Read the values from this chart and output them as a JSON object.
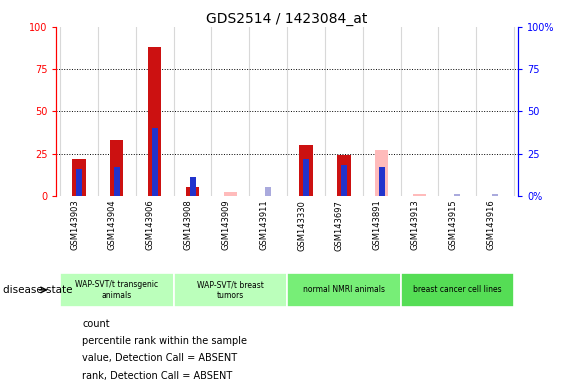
{
  "title": "GDS2514 / 1423084_at",
  "samples": [
    "GSM143903",
    "GSM143904",
    "GSM143906",
    "GSM143908",
    "GSM143909",
    "GSM143911",
    "GSM143330",
    "GSM143697",
    "GSM143891",
    "GSM143913",
    "GSM143915",
    "GSM143916"
  ],
  "count": [
    22,
    33,
    88,
    5,
    0,
    0,
    30,
    24,
    0,
    0,
    0,
    0
  ],
  "percentile_rank": [
    16,
    17,
    40,
    11,
    0,
    0,
    22,
    18,
    17,
    0,
    0,
    0
  ],
  "value_absent": [
    0,
    0,
    0,
    0,
    2,
    0,
    0,
    0,
    27,
    1,
    0,
    0
  ],
  "rank_absent": [
    0,
    0,
    0,
    0,
    0,
    5,
    0,
    0,
    0,
    0,
    1,
    1
  ],
  "ylim": [
    0,
    100
  ],
  "bar_width": 0.35,
  "count_color": "#cc1111",
  "rank_color": "#2233cc",
  "value_absent_color": "#ffbbbb",
  "rank_absent_color": "#aaaadd",
  "bg_color": "#d8d8d8",
  "plot_bg": "white",
  "group_labels": [
    "WAP-SVT/t transgenic\nanimals",
    "WAP-SVT/t breast\ntumors",
    "normal NMRI animals",
    "breast cancer cell lines"
  ],
  "group_ranges": [
    [
      0,
      3
    ],
    [
      3,
      6
    ],
    [
      6,
      9
    ],
    [
      9,
      12
    ]
  ],
  "group_colors": [
    "#bbffbb",
    "#bbffbb",
    "#77ee77",
    "#55dd55"
  ],
  "legend_items": [
    "count",
    "percentile rank within the sample",
    "value, Detection Call = ABSENT",
    "rank, Detection Call = ABSENT"
  ]
}
